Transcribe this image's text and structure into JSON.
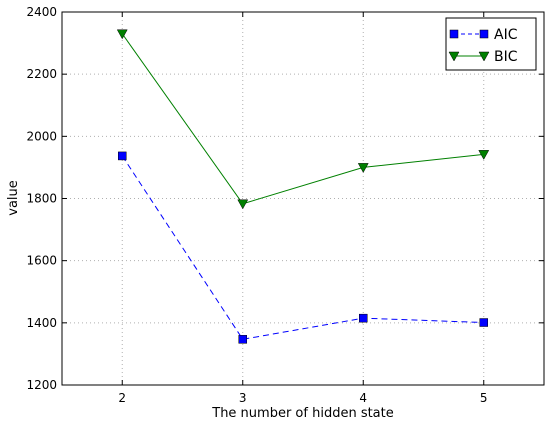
{
  "chart_data": {
    "type": "line",
    "title": "",
    "xlabel": "The number of hidden state",
    "ylabel": "value",
    "x": [
      2,
      3,
      4,
      5
    ],
    "xlim": [
      1.5,
      5.5
    ],
    "ylim": [
      1200,
      2400
    ],
    "xticks": [
      2,
      3,
      4,
      5
    ],
    "yticks": [
      1200,
      1400,
      1600,
      1800,
      2000,
      2200,
      2400
    ],
    "grid": true,
    "legend_position": "top-right",
    "series": [
      {
        "name": "AIC",
        "values": [
          1937,
          1347,
          1415,
          1401
        ],
        "color": "#0000ff",
        "linestyle": "dashed",
        "marker": "square"
      },
      {
        "name": "BIC",
        "values": [
          2330,
          1783,
          1900,
          1942
        ],
        "color": "#008000",
        "linestyle": "solid",
        "marker": "triangle-down"
      }
    ]
  }
}
